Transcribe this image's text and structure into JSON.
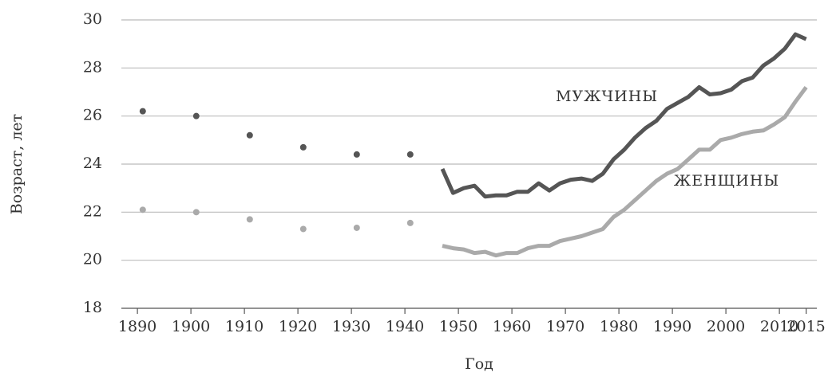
{
  "chart_data": {
    "type": "line",
    "xlabel": "Год",
    "ylabel": "Возраст, лет",
    "xlim": [
      1887,
      2017
    ],
    "ylim": [
      18,
      30
    ],
    "xticks": [
      1890,
      1900,
      1910,
      1920,
      1930,
      1940,
      1950,
      1960,
      1970,
      1980,
      1990,
      2000,
      2010,
      2015
    ],
    "yticks": [
      18,
      20,
      22,
      24,
      26,
      28,
      30
    ],
    "grid": true,
    "series": [
      {
        "name": "МУЖЧИНЫ",
        "color": "#555555",
        "style": "line",
        "x": [
          1947,
          1949,
          1951,
          1953,
          1955,
          1957,
          1959,
          1961,
          1963,
          1965,
          1967,
          1969,
          1971,
          1973,
          1975,
          1977,
          1979,
          1981,
          1983,
          1985,
          1987,
          1989,
          1991,
          1993,
          1995,
          1997,
          1999,
          2001,
          2003,
          2005,
          2007,
          2009,
          2011,
          2013,
          2015
        ],
        "values": [
          23.8,
          22.8,
          23.0,
          23.1,
          22.65,
          22.7,
          22.7,
          22.85,
          22.85,
          23.2,
          22.9,
          23.2,
          23.35,
          23.4,
          23.3,
          23.6,
          24.2,
          24.6,
          25.1,
          25.5,
          25.8,
          26.3,
          26.55,
          26.8,
          27.2,
          26.9,
          26.95,
          27.1,
          27.45,
          27.6,
          28.1,
          28.4,
          28.8,
          29.4,
          29.2
        ]
      },
      {
        "name": "ЖЕНЩИНЫ",
        "color": "#aaaaaa",
        "style": "line",
        "x": [
          1947,
          1949,
          1951,
          1953,
          1955,
          1957,
          1959,
          1961,
          1963,
          1965,
          1967,
          1969,
          1971,
          1973,
          1975,
          1977,
          1979,
          1981,
          1983,
          1985,
          1987,
          1989,
          1991,
          1993,
          1995,
          1997,
          1999,
          2001,
          2003,
          2005,
          2007,
          2009,
          2011,
          2013,
          2015
        ],
        "values": [
          20.6,
          20.5,
          20.45,
          20.3,
          20.35,
          20.2,
          20.3,
          20.3,
          20.5,
          20.6,
          20.6,
          20.8,
          20.9,
          21.0,
          21.15,
          21.3,
          21.8,
          22.1,
          22.5,
          22.9,
          23.3,
          23.6,
          23.8,
          24.2,
          24.6,
          24.6,
          25.0,
          25.1,
          25.25,
          25.35,
          25.4,
          25.65,
          25.95,
          26.6,
          27.2
        ]
      },
      {
        "color": "#555555",
        "style": "points",
        "x": [
          1891,
          1901,
          1911,
          1921,
          1931,
          1941
        ],
        "values": [
          26.2,
          26.0,
          25.2,
          24.7,
          24.4,
          24.4
        ]
      },
      {
        "color": "#aaaaaa",
        "style": "points",
        "x": [
          1891,
          1901,
          1911,
          1921,
          1931,
          1941
        ],
        "values": [
          22.1,
          22.0,
          21.7,
          21.3,
          21.35,
          21.55
        ]
      }
    ]
  }
}
